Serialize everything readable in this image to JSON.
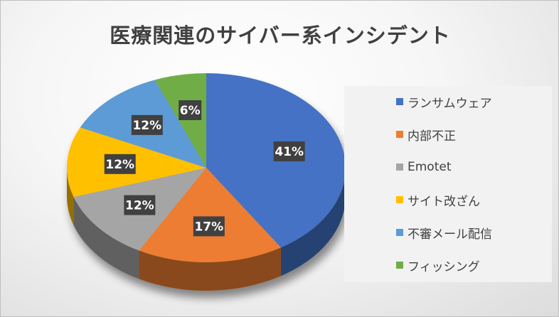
{
  "chart_data": {
    "type": "pie",
    "title": "医療関連のサイバー系インシデント",
    "categories": [
      "ランサムウェア",
      "内部不正",
      "Emotet",
      "サイト改ざん",
      "不審メール配信",
      "フィッシング"
    ],
    "values": [
      41,
      17,
      12,
      12,
      12,
      6
    ],
    "data_labels": [
      "41%",
      "17%",
      "12%",
      "12%",
      "12%",
      "6%"
    ],
    "colors": [
      "#4472C4",
      "#ED7D31",
      "#A5A5A5",
      "#FFC000",
      "#5B9BD5",
      "#70AD47"
    ],
    "legend_position": "right",
    "style": "3d"
  }
}
